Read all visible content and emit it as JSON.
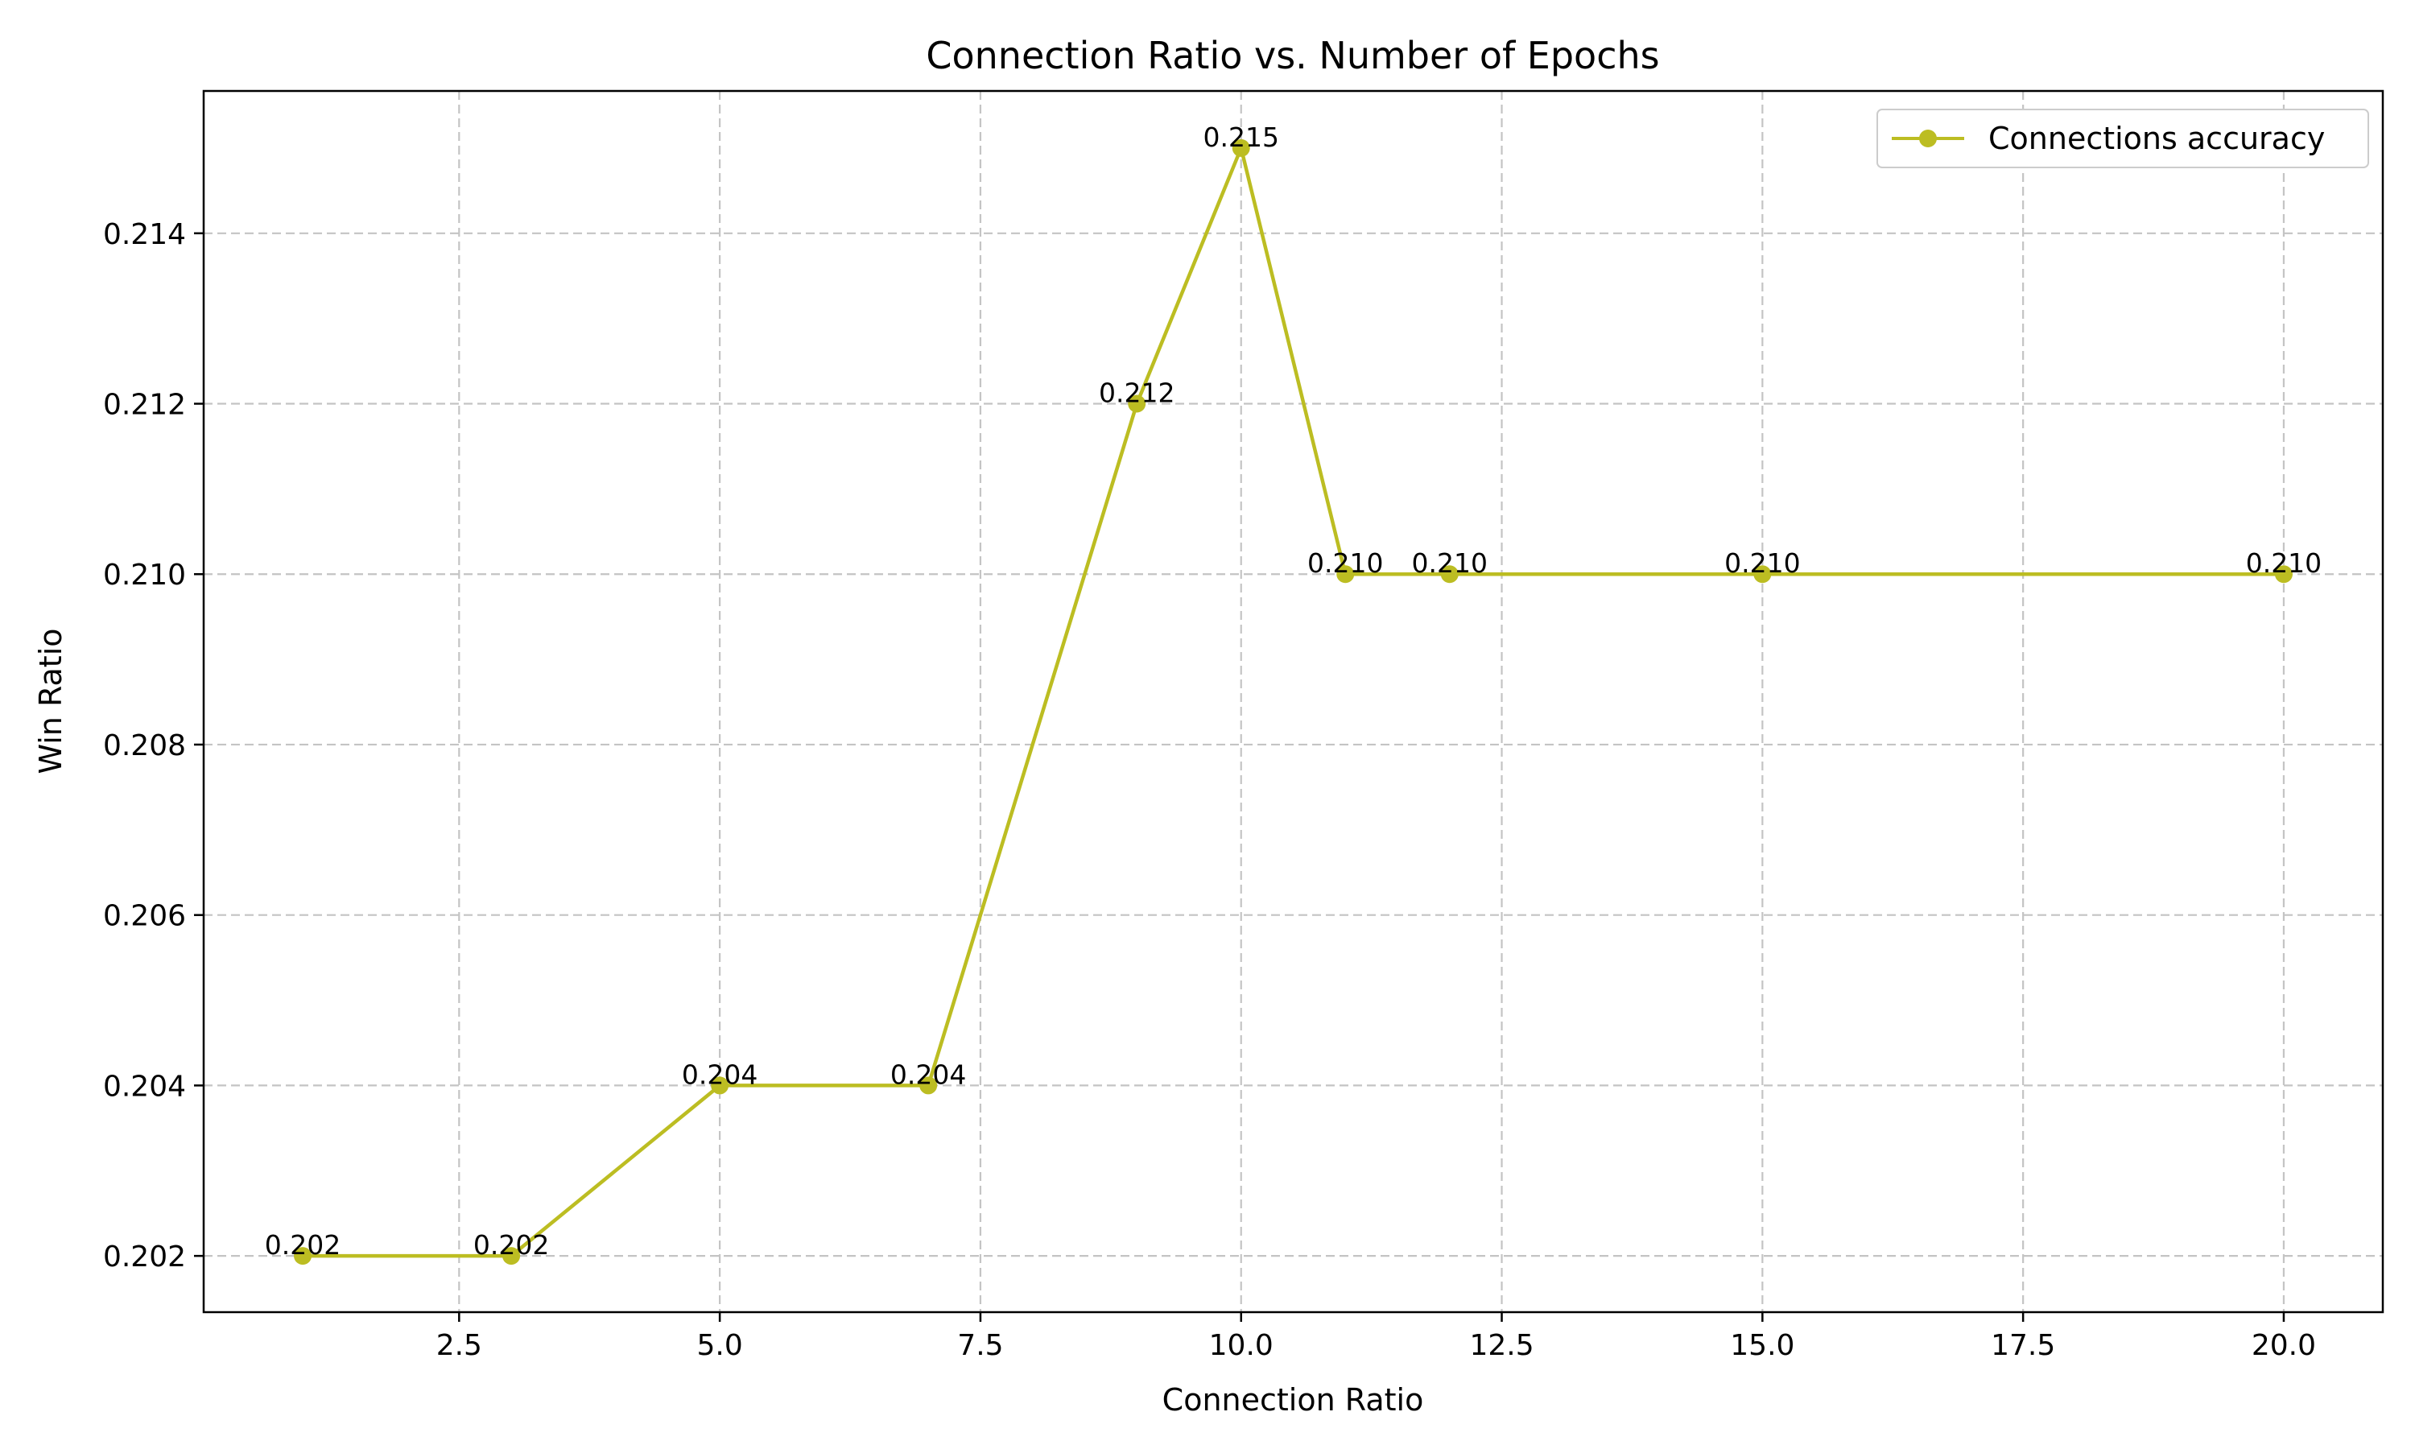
{
  "chart_data": {
    "type": "line",
    "title": "Connection Ratio vs. Number of Epochs",
    "xlabel": "Connection Ratio",
    "ylabel": "Win Ratio",
    "xlim": [
      0.05,
      20.95
    ],
    "ylim": [
      0.20134,
      0.21567
    ],
    "x_ticks": [
      2.5,
      5.0,
      7.5,
      10.0,
      12.5,
      15.0,
      17.5,
      20.0
    ],
    "x_tick_labels": [
      "2.5",
      "5.0",
      "7.5",
      "10.0",
      "12.5",
      "15.0",
      "17.5",
      "20.0"
    ],
    "y_ticks": [
      0.202,
      0.204,
      0.206,
      0.208,
      0.21,
      0.212,
      0.214
    ],
    "y_tick_labels": [
      "0.202",
      "0.204",
      "0.206",
      "0.208",
      "0.210",
      "0.212",
      "0.214"
    ],
    "grid": true,
    "grid_style": "dashed",
    "legend_position": "top-right",
    "series": [
      {
        "name": "Connections accuracy",
        "color": "#bcbd22",
        "marker": "circle",
        "x": [
          1,
          3,
          5,
          7,
          9,
          10,
          11,
          12,
          15,
          20
        ],
        "y": [
          0.202,
          0.202,
          0.204,
          0.204,
          0.212,
          0.215,
          0.21,
          0.21,
          0.21,
          0.21
        ],
        "data_labels": [
          "0.202",
          "0.202",
          "0.204",
          "0.204",
          "0.212",
          "0.215",
          "0.210",
          "0.210",
          "0.210",
          "0.210"
        ]
      }
    ]
  }
}
